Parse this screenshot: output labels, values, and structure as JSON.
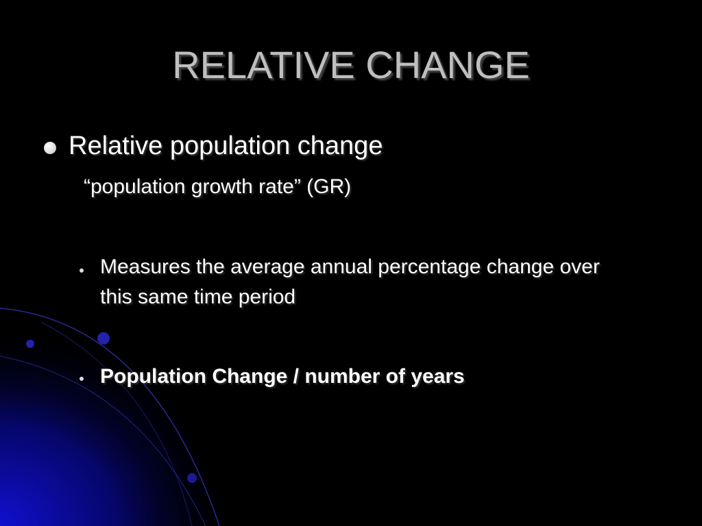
{
  "slide": {
    "title": "RELATIVE CHANGE",
    "bullets": [
      {
        "text": "Relative population change",
        "subtext": "“population growth rate” (GR)"
      },
      {
        "text": "Measures the average annual percentage change over this same time period"
      },
      {
        "text": "Population Change / number of years"
      }
    ]
  }
}
